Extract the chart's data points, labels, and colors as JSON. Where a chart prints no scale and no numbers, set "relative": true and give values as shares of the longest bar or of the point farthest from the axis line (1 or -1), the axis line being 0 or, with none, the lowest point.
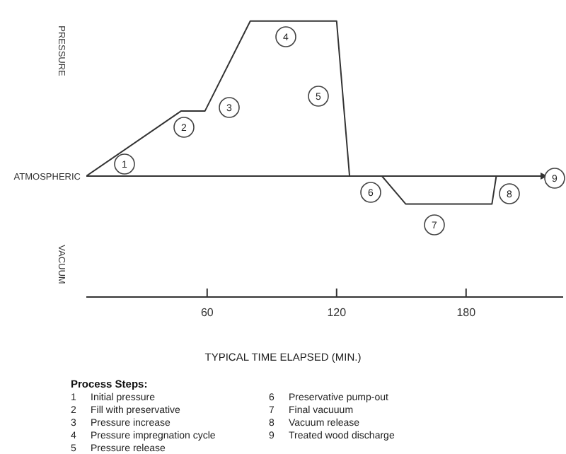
{
  "chart_data": {
    "type": "line",
    "relative": true,
    "xlabel": "TYPICAL TIME ELAPSED (MIN.)",
    "x": [
      4,
      48,
      59,
      80,
      120,
      126,
      141,
      152,
      192,
      194
    ],
    "series": [
      {
        "color": "#333333",
        "values": [
          0,
          0.42,
          0.42,
          1,
          1,
          0,
          0,
          -0.18,
          -0.18,
          0
        ]
      }
    ],
    "xlim": [
      4,
      225
    ],
    "xticks": [
      60,
      120,
      180
    ],
    "tick_labels": "x",
    "grid": false,
    "legend": false,
    "marker": "none",
    "line_style": "solid",
    "ref_lines": [
      {
        "axis": "y",
        "value": 0,
        "label": "ATMOSPHERIC",
        "color": "#333333"
      }
    ],
    "annotations": [
      "PRESSURE",
      "VACUUM",
      "1",
      "2",
      "3",
      "4",
      "5",
      "6",
      "7",
      "8",
      "9",
      "Process Steps:",
      "1 Initial pressure",
      "2 Fill with preservative",
      "3 Pressure increase",
      "4 Pressure impregnation cycle",
      "5 Pressure release",
      "6 Preservative pump-out",
      "7 Final vacuuum",
      "8 Vacuum release",
      "9 Treated wood discharge"
    ]
  }
}
